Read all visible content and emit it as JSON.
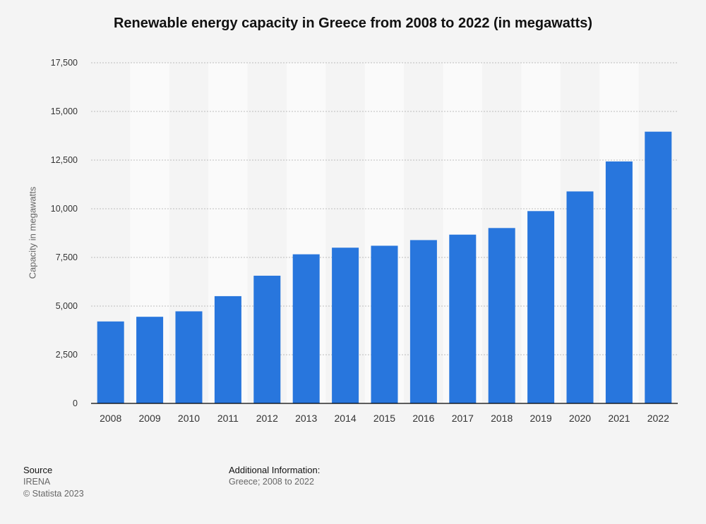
{
  "chart_data": {
    "type": "bar",
    "title": "Renewable energy capacity in Greece from 2008 to 2022 (in megawatts)",
    "xlabel": "",
    "ylabel": "Capacity in megawatts",
    "categories": [
      "2008",
      "2009",
      "2010",
      "2011",
      "2012",
      "2013",
      "2014",
      "2015",
      "2016",
      "2017",
      "2018",
      "2019",
      "2020",
      "2021",
      "2022"
    ],
    "values": [
      4210,
      4450,
      4730,
      5510,
      6560,
      7660,
      8000,
      8100,
      8390,
      8670,
      9010,
      9880,
      10890,
      12430,
      13960
    ],
    "ylim": [
      0,
      17500
    ],
    "yticks": [
      0,
      2500,
      5000,
      7500,
      10000,
      12500,
      15000,
      17500
    ],
    "ytick_labels": [
      "0",
      "2,500",
      "5,000",
      "7,500",
      "10,000",
      "12,500",
      "15,000",
      "17,500"
    ],
    "grid": true,
    "bar_color": "#2876dd"
  },
  "footer": {
    "source_heading": "Source",
    "source_lines": [
      "IRENA",
      "© Statista 2023"
    ],
    "info_heading": "Additional Information:",
    "info_text": "Greece; 2008 to 2022"
  }
}
